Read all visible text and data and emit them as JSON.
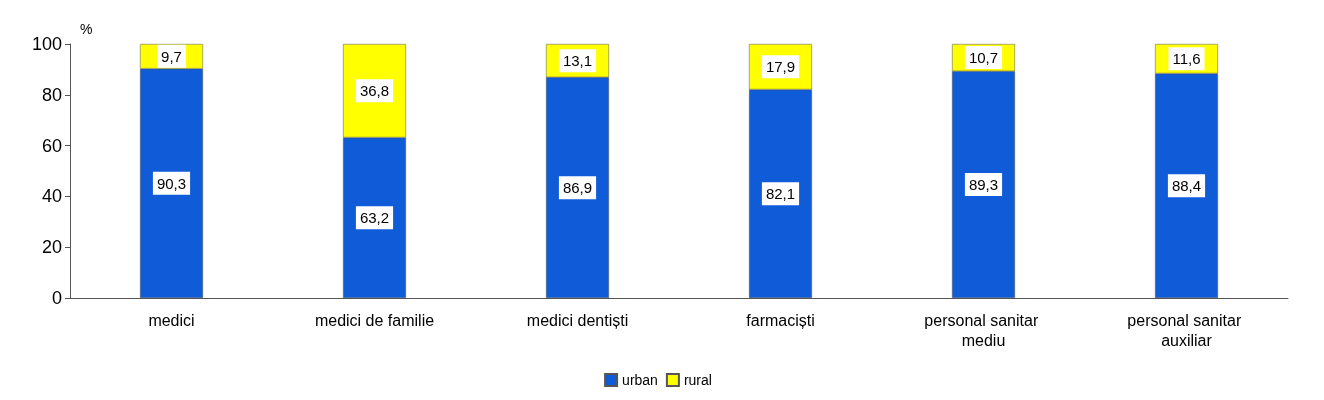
{
  "chart_data": {
    "type": "bar",
    "stacked": true,
    "ylabel": "%",
    "categories": [
      "medici",
      "medici de familie",
      "medici dentiști",
      "farmaciști",
      "personal sanitar mediu",
      "personal sanitar auxiliar"
    ],
    "series": [
      {
        "name": "urban",
        "color": "#0f5bd8",
        "values": [
          90.3,
          63.2,
          86.9,
          82.1,
          89.3,
          88.4
        ],
        "value_labels": [
          "90,3",
          "63,2",
          "86,9",
          "82,1",
          "89,3",
          "88,4"
        ]
      },
      {
        "name": "rural",
        "color": "#ffff00",
        "values": [
          9.7,
          36.8,
          13.1,
          17.9,
          10.7,
          11.6
        ],
        "value_labels": [
          "9,7",
          "36,8",
          "13,1",
          "17,9",
          "10,7",
          "11,6"
        ]
      }
    ],
    "ylim": [
      0,
      100
    ],
    "yticks": [
      0,
      20,
      40,
      60,
      80,
      100
    ],
    "grid": false,
    "legend": "bottom"
  }
}
